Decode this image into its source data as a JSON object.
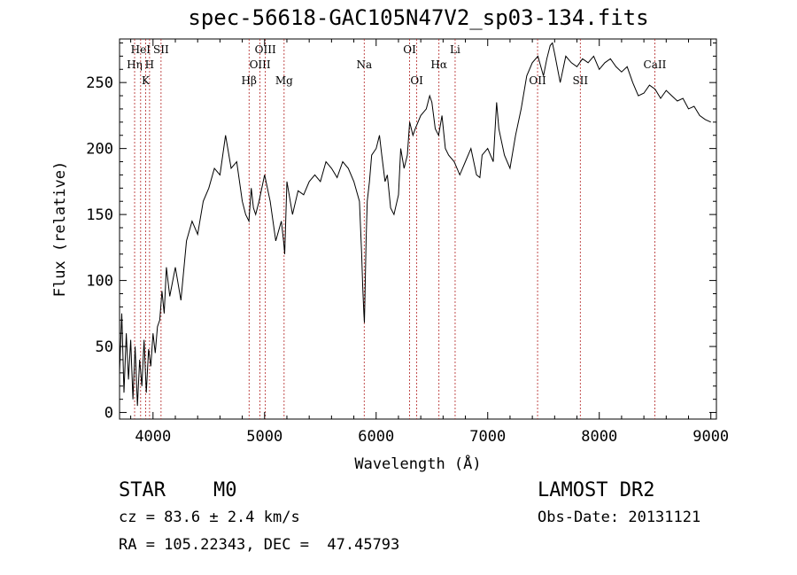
{
  "chart_data": {
    "type": "line",
    "title": "spec-56618-GAC105N47V2_sp03-134.fits",
    "xlabel": "Wavelength (Å)",
    "ylabel": "Flux (relative)",
    "xlim": [
      3700,
      9050
    ],
    "ylim": [
      -5,
      283
    ],
    "x_ticks": [
      4000,
      5000,
      6000,
      7000,
      8000,
      9000
    ],
    "y_ticks": [
      0,
      50,
      100,
      150,
      200,
      250
    ],
    "x_tick_labels": [
      "4000",
      "5000",
      "6000",
      "7000",
      "8000",
      "9000"
    ],
    "y_tick_labels": [
      "0",
      "50",
      "100",
      "150",
      "200",
      "250"
    ],
    "grid": false,
    "series": [
      {
        "color": "#000000",
        "x": [
          3700,
          3720,
          3740,
          3760,
          3780,
          3800,
          3820,
          3840,
          3860,
          3880,
          3900,
          3920,
          3940,
          3960,
          3980,
          4000,
          4020,
          4040,
          4060,
          4080,
          4100,
          4120,
          4150,
          4200,
          4250,
          4300,
          4350,
          4400,
          4450,
          4500,
          4550,
          4600,
          4650,
          4700,
          4750,
          4800,
          4830,
          4860,
          4880,
          4900,
          4920,
          4950,
          5000,
          5050,
          5100,
          5150,
          5170,
          5180,
          5200,
          5250,
          5300,
          5350,
          5400,
          5450,
          5500,
          5550,
          5600,
          5650,
          5700,
          5750,
          5800,
          5850,
          5870,
          5880,
          5890,
          5895,
          5900,
          5910,
          5920,
          5940,
          5960,
          6000,
          6030,
          6050,
          6080,
          6100,
          6130,
          6160,
          6200,
          6220,
          6250,
          6280,
          6300,
          6330,
          6350,
          6400,
          6450,
          6480,
          6500,
          6530,
          6560,
          6590,
          6620,
          6650,
          6700,
          6750,
          6800,
          6850,
          6900,
          6930,
          6950,
          7000,
          7050,
          7080,
          7100,
          7150,
          7200,
          7250,
          7300,
          7350,
          7400,
          7450,
          7500,
          7530,
          7560,
          7580,
          7600,
          7650,
          7700,
          7750,
          7800,
          7850,
          7900,
          7950,
          8000,
          8050,
          8100,
          8150,
          8200,
          8250,
          8300,
          8350,
          8400,
          8450,
          8500,
          8550,
          8600,
          8650,
          8700,
          8750,
          8800,
          8850,
          8900,
          8950,
          9000
        ],
        "y": [
          30,
          75,
          15,
          60,
          25,
          55,
          10,
          50,
          5,
          40,
          20,
          55,
          15,
          48,
          35,
          60,
          45,
          65,
          70,
          92,
          75,
          110,
          88,
          110,
          85,
          130,
          145,
          135,
          160,
          170,
          185,
          180,
          210,
          185,
          190,
          160,
          150,
          145,
          170,
          155,
          150,
          160,
          180,
          160,
          130,
          145,
          130,
          120,
          175,
          150,
          168,
          165,
          175,
          180,
          175,
          190,
          185,
          178,
          190,
          185,
          175,
          160,
          120,
          95,
          75,
          68,
          90,
          130,
          160,
          175,
          195,
          200,
          210,
          195,
          175,
          180,
          155,
          150,
          165,
          200,
          185,
          195,
          220,
          210,
          215,
          225,
          230,
          240,
          235,
          215,
          210,
          225,
          200,
          195,
          190,
          180,
          190,
          200,
          180,
          178,
          195,
          200,
          190,
          235,
          215,
          195,
          185,
          210,
          230,
          255,
          265,
          270,
          255,
          268,
          278,
          280,
          272,
          250,
          270,
          265,
          262,
          268,
          265,
          270,
          260,
          265,
          268,
          262,
          258,
          262,
          250,
          240,
          242,
          248,
          245,
          238,
          244,
          240,
          236,
          238,
          230,
          232,
          225,
          222,
          220
        ]
      }
    ],
    "lines": [
      {
        "x": 3835,
        "label": "Hη",
        "row": 2
      },
      {
        "x": 3889,
        "label": "HeI",
        "row": 1
      },
      {
        "x": 3934,
        "label": "K",
        "row": 3
      },
      {
        "x": 3969,
        "label": "H",
        "row": 2
      },
      {
        "x": 4072,
        "label": "SII",
        "row": 1
      },
      {
        "x": 4861,
        "label": "Hβ",
        "row": 3
      },
      {
        "x": 4959,
        "label": "OIII",
        "row": 2
      },
      {
        "x": 5007,
        "label": "OIII",
        "row": 1
      },
      {
        "x": 5175,
        "label": "Mg",
        "row": 3
      },
      {
        "x": 5893,
        "label": "Na",
        "row": 2
      },
      {
        "x": 6300,
        "label": "OI",
        "row": 1
      },
      {
        "x": 6364,
        "label": "OI",
        "row": 3
      },
      {
        "x": 6563,
        "label": "Hα",
        "row": 2
      },
      {
        "x": 6708,
        "label": "Li",
        "row": 1
      },
      {
        "x": 7447,
        "label": "OII",
        "row": 3
      },
      {
        "x": 7830,
        "label": "SII",
        "row": 3
      },
      {
        "x": 8498,
        "label": "CaII",
        "row": 2
      }
    ]
  },
  "info": {
    "object_type": "STAR",
    "subclass": "M0",
    "survey": "LAMOST DR2",
    "cz": "cz = 83.6 ± 2.4 km/s",
    "obs_date": "Obs-Date: 20131121",
    "coords": "RA = 105.22343, DEC =  47.45793"
  }
}
